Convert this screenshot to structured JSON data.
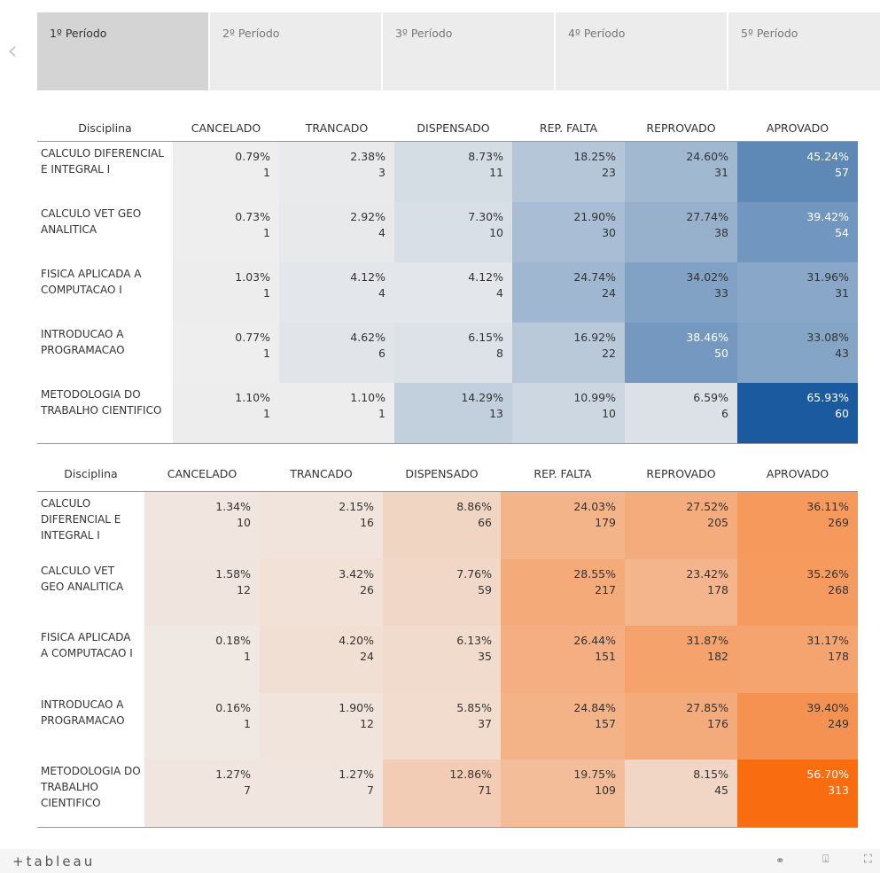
{
  "tabs": [
    "1º Período",
    "2º Período",
    "3º Período",
    "4º Período",
    "5º Período"
  ],
  "selected_tab": 0,
  "tables": [
    {
      "colors": [
        "#eeeeee",
        "#1b5a9e"
      ],
      "header": [
        "Disciplina",
        "CANCELADO",
        "TRANCADO",
        "DISPENSADO",
        "REP. FALTA",
        "REPROVADO",
        "APROVADO"
      ],
      "rows": [
        {
          "name": "CALCULO DIFERENCIAL E INTEGRAL I",
          "cells": [
            {
              "pct": "0.79%",
              "count": 1
            },
            {
              "pct": "2.38%",
              "count": 3
            },
            {
              "pct": "8.73%",
              "count": 11
            },
            {
              "pct": "18.25%",
              "count": 23
            },
            {
              "pct": "24.60%",
              "count": 31
            },
            {
              "pct": "45.24%",
              "count": 57
            }
          ]
        },
        {
          "name": "CALCULO VET GEO ANALITICA",
          "cells": [
            {
              "pct": "0.73%",
              "count": 1
            },
            {
              "pct": "2.92%",
              "count": 4
            },
            {
              "pct": "7.30%",
              "count": 10
            },
            {
              "pct": "21.90%",
              "count": 30
            },
            {
              "pct": "27.74%",
              "count": 38
            },
            {
              "pct": "39.42%",
              "count": 54
            }
          ]
        },
        {
          "name": "FISICA APLICADA A COMPUTACAO I",
          "cells": [
            {
              "pct": "1.03%",
              "count": 1
            },
            {
              "pct": "4.12%",
              "count": 4
            },
            {
              "pct": "4.12%",
              "count": 4
            },
            {
              "pct": "24.74%",
              "count": 24
            },
            {
              "pct": "34.02%",
              "count": 33
            },
            {
              "pct": "31.96%",
              "count": 31
            }
          ]
        },
        {
          "name": "INTRODUCAO A PROGRAMACAO",
          "cells": [
            {
              "pct": "0.77%",
              "count": 1
            },
            {
              "pct": "4.62%",
              "count": 6
            },
            {
              "pct": "6.15%",
              "count": 8
            },
            {
              "pct": "16.92%",
              "count": 22
            },
            {
              "pct": "38.46%",
              "count": 50
            },
            {
              "pct": "33.08%",
              "count": 43
            }
          ]
        },
        {
          "name": "METODOLOGIA DO TRABALHO CIENTIFICO",
          "cells": [
            {
              "pct": "1.10%",
              "count": 1
            },
            {
              "pct": "1.10%",
              "count": 1
            },
            {
              "pct": "14.29%",
              "count": 13
            },
            {
              "pct": "10.99%",
              "count": 10
            },
            {
              "pct": "6.59%",
              "count": 6
            },
            {
              "pct": "65.93%",
              "count": 60
            }
          ]
        }
      ]
    },
    {
      "colors": [
        "#f0e8e3",
        "#f96c10"
      ],
      "header": [
        "Disciplina",
        "CANCELADO",
        "TRANCADO",
        "DISPENSADO",
        "REP. FALTA",
        "REPROVADO",
        "APROVADO"
      ],
      "rows": [
        {
          "name": "CALCULO DIFERENCIAL E INTEGRAL I",
          "cells": [
            {
              "pct": "1.34%",
              "count": 10
            },
            {
              "pct": "2.15%",
              "count": 16
            },
            {
              "pct": "8.86%",
              "count": 66
            },
            {
              "pct": "24.03%",
              "count": 179
            },
            {
              "pct": "27.52%",
              "count": 205
            },
            {
              "pct": "36.11%",
              "count": 269
            }
          ]
        },
        {
          "name": "CALCULO VET GEO ANALITICA",
          "cells": [
            {
              "pct": "1.58%",
              "count": 12
            },
            {
              "pct": "3.42%",
              "count": 26
            },
            {
              "pct": "7.76%",
              "count": 59
            },
            {
              "pct": "28.55%",
              "count": 217
            },
            {
              "pct": "23.42%",
              "count": 178
            },
            {
              "pct": "35.26%",
              "count": 268
            }
          ]
        },
        {
          "name": "FISICA APLICADA A COMPUTACAO I",
          "cells": [
            {
              "pct": "0.18%",
              "count": 1
            },
            {
              "pct": "4.20%",
              "count": 24
            },
            {
              "pct": "6.13%",
              "count": 35
            },
            {
              "pct": "26.44%",
              "count": 151
            },
            {
              "pct": "31.87%",
              "count": 182
            },
            {
              "pct": "31.17%",
              "count": 178
            }
          ]
        },
        {
          "name": "INTRODUCAO A PROGRAMACAO",
          "cells": [
            {
              "pct": "0.16%",
              "count": 1
            },
            {
              "pct": "1.90%",
              "count": 12
            },
            {
              "pct": "5.85%",
              "count": 37
            },
            {
              "pct": "24.84%",
              "count": 157
            },
            {
              "pct": "27.85%",
              "count": 176
            },
            {
              "pct": "39.40%",
              "count": 249
            }
          ]
        },
        {
          "name": "METODOLOGIA DO TRABALHO CIENTIFICO",
          "cells": [
            {
              "pct": "1.27%",
              "count": 7
            },
            {
              "pct": "1.27%",
              "count": 7
            },
            {
              "pct": "12.86%",
              "count": 71
            },
            {
              "pct": "19.75%",
              "count": 109
            },
            {
              "pct": "8.15%",
              "count": 45
            },
            {
              "pct": "56.70%",
              "count": 313
            }
          ]
        }
      ]
    }
  ],
  "footer": {
    "logo": "+tableau"
  }
}
